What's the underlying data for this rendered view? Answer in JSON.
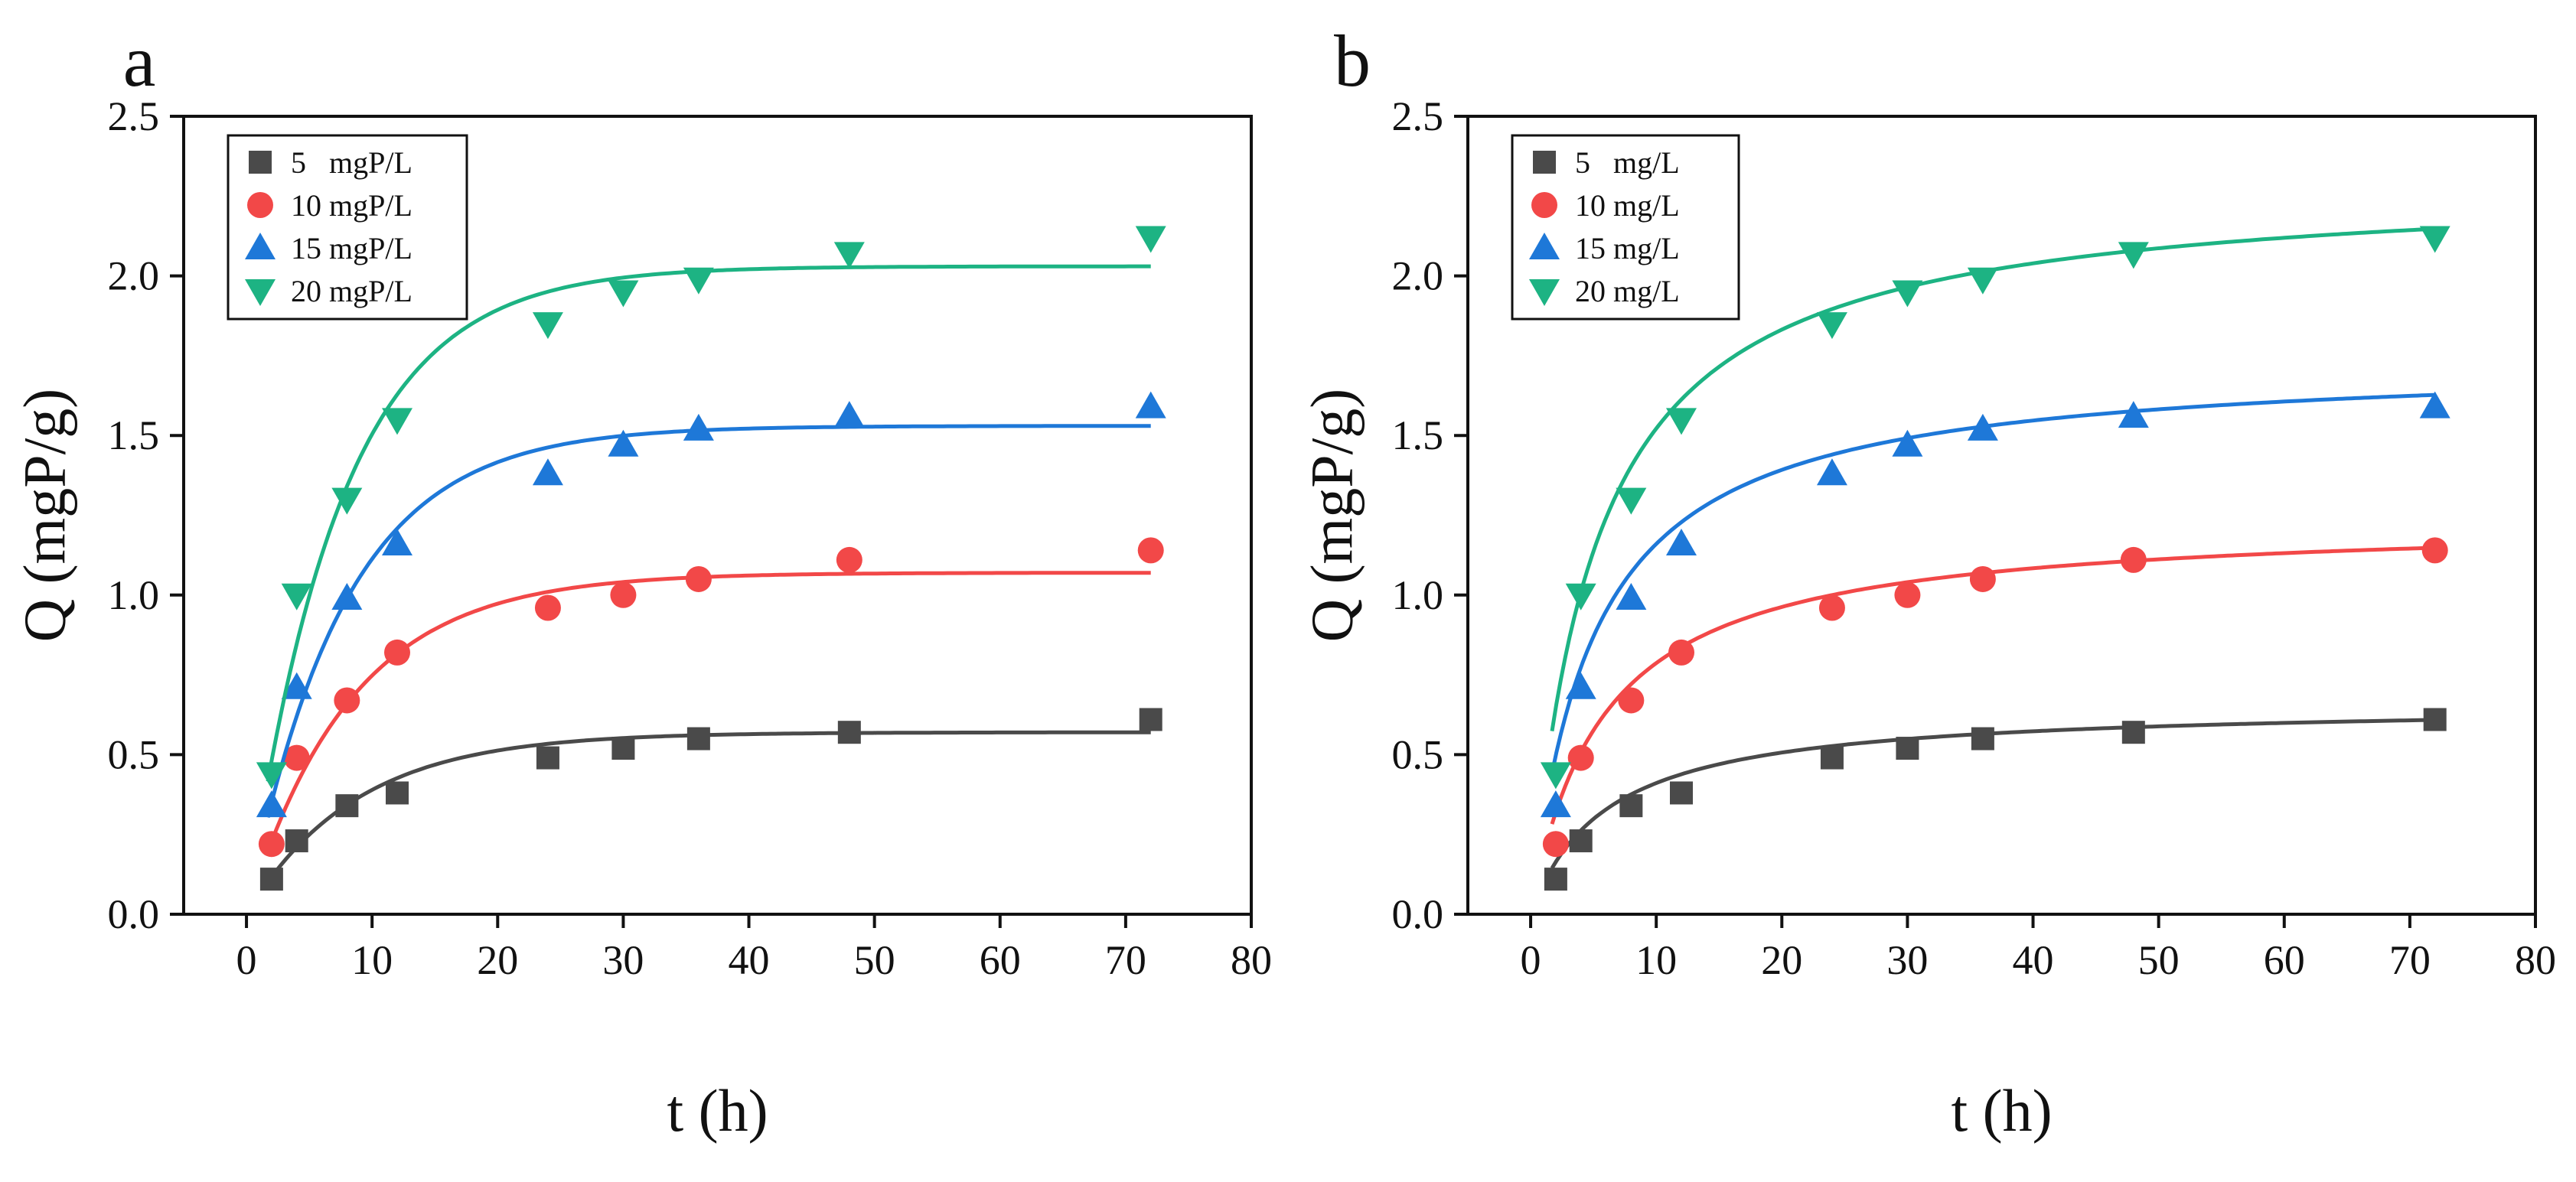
{
  "chart_data": [
    {
      "type": "scatter",
      "panel_label": "a",
      "title": "",
      "xlabel": "t (h)",
      "ylabel": "Q (mgP/g)",
      "xlim": [
        -5,
        80
      ],
      "ylim": [
        0,
        2.5
      ],
      "xticks": [
        "0",
        "10",
        "20",
        "30",
        "40",
        "50",
        "60",
        "70",
        "80"
      ],
      "yticks": [
        "0.0",
        "0.5",
        "1.0",
        "1.5",
        "2.0",
        "2.5"
      ],
      "legend_position": "top-left",
      "x": [
        2,
        4,
        8,
        12,
        24,
        30,
        36,
        48,
        72
      ],
      "series": [
        {
          "name": "5   mgP/L",
          "marker": "square",
          "color": "#4a4a4a",
          "values": [
            0.11,
            0.23,
            0.34,
            0.38,
            0.49,
            0.52,
            0.55,
            0.57,
            0.61
          ],
          "fit": {
            "model": "pfo",
            "qe": 0.57,
            "k": 0.115
          }
        },
        {
          "name": "10 mgP/L",
          "marker": "circle",
          "color": "#f24848",
          "values": [
            0.22,
            0.49,
            0.67,
            0.82,
            0.96,
            1.0,
            1.05,
            1.11,
            1.14
          ],
          "fit": {
            "model": "pfo",
            "qe": 1.07,
            "k": 0.12
          }
        },
        {
          "name": "15 mgP/L",
          "marker": "triangle-up",
          "color": "#1e78d8",
          "values": [
            0.34,
            0.71,
            0.99,
            1.16,
            1.38,
            1.47,
            1.52,
            1.56,
            1.59
          ],
          "fit": {
            "model": "pfo",
            "qe": 1.53,
            "k": 0.13
          }
        },
        {
          "name": "20 mgP/L",
          "marker": "triangle-down",
          "color": "#1db383",
          "values": [
            0.44,
            1.0,
            1.3,
            1.55,
            1.85,
            1.95,
            1.99,
            2.07,
            2.12
          ],
          "fit": {
            "model": "pfo",
            "qe": 2.03,
            "k": 0.135
          }
        }
      ]
    },
    {
      "type": "scatter",
      "panel_label": "b",
      "title": "",
      "xlabel": "t (h)",
      "ylabel": "Q (mgP/g)",
      "xlim": [
        -5,
        80
      ],
      "ylim": [
        0,
        2.5
      ],
      "xticks": [
        "0",
        "10",
        "20",
        "30",
        "40",
        "50",
        "60",
        "70",
        "80"
      ],
      "yticks": [
        "0.0",
        "0.5",
        "1.0",
        "1.5",
        "2.0",
        "2.5"
      ],
      "legend_position": "top-left",
      "x": [
        2,
        4,
        8,
        12,
        24,
        30,
        36,
        48,
        72
      ],
      "series": [
        {
          "name": "5   mg/L",
          "marker": "square",
          "color": "#4a4a4a",
          "values": [
            0.11,
            0.23,
            0.34,
            0.38,
            0.49,
            0.52,
            0.55,
            0.57,
            0.61
          ],
          "fit": {
            "model": "pso",
            "qe": 0.66,
            "k": 0.25
          }
        },
        {
          "name": "10 mg/L",
          "marker": "circle",
          "color": "#f24848",
          "values": [
            0.22,
            0.49,
            0.67,
            0.82,
            0.96,
            1.0,
            1.05,
            1.11,
            1.14
          ],
          "fit": {
            "model": "pso",
            "qe": 1.24,
            "k": 0.14
          }
        },
        {
          "name": "15 mg/L",
          "marker": "triangle-up",
          "color": "#1e78d8",
          "values": [
            0.34,
            0.71,
            0.99,
            1.16,
            1.38,
            1.47,
            1.52,
            1.56,
            1.59
          ],
          "fit": {
            "model": "pso",
            "qe": 1.74,
            "k": 0.115
          }
        },
        {
          "name": "20 mg/L",
          "marker": "triangle-down",
          "color": "#1db383",
          "values": [
            0.44,
            1.0,
            1.3,
            1.55,
            1.85,
            1.95,
            1.99,
            2.07,
            2.12
          ],
          "fit": {
            "model": "pso",
            "qe": 2.3,
            "k": 0.085
          }
        }
      ]
    }
  ]
}
